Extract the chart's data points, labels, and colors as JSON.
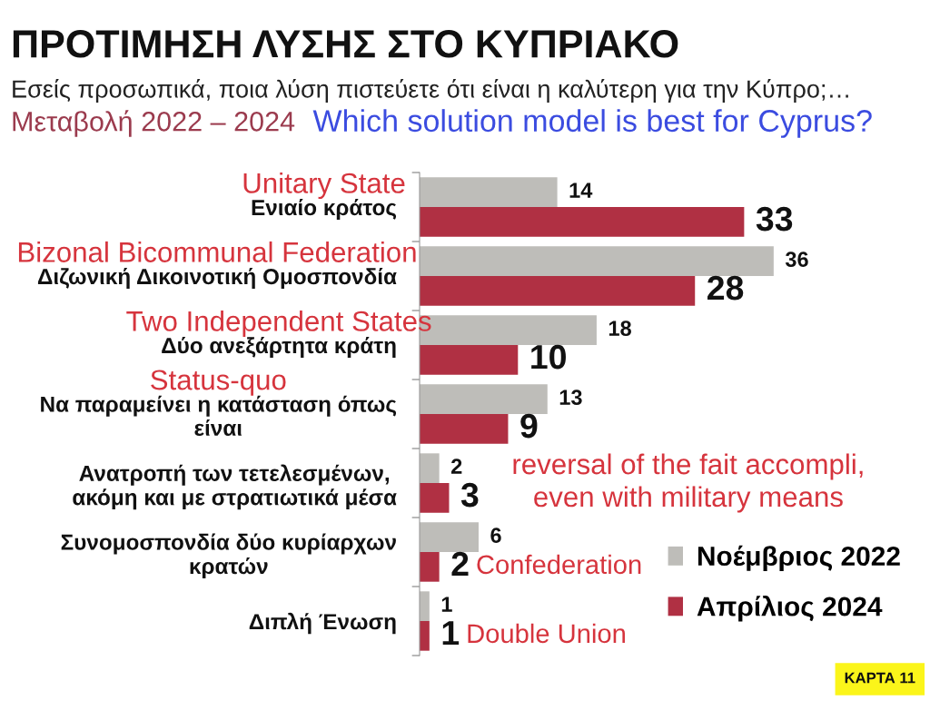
{
  "chart_data": {
    "type": "bar",
    "orientation": "horizontal",
    "title": "ΠΡΟΤΙΜΗΣΗ ΛΥΣΗΣ ΣΤΟ ΚΥΠΡΙΑΚΟ",
    "subtitle": "Εσείς προσωπικά, ποια λύση πιστεύετε ότι είναι η καλύτερη για την Κύπρο;…",
    "categories": [
      "Ενιαίο κράτος",
      "Διζωνική Δικοινοτική Ομοσπονδία",
      "Δύο ανεξάρτητα κράτη",
      "Να παραμείνει η κατάσταση όπως\nείναι",
      "Ανατροπή των τετελεσμένων,\nακόμη και με στρατιωτικά μέσα",
      "Συνομοσπονδία δύο κυρίαρχων\nκρατών",
      "Διπλή Ένωση"
    ],
    "series": [
      {
        "name": "Νοέμβριος 2022",
        "color": "#bebdb9",
        "values": [
          14,
          36,
          18,
          13,
          2,
          6,
          1
        ]
      },
      {
        "name": "Απρίλιος 2024",
        "color": "#b03043",
        "values": [
          33,
          28,
          10,
          9,
          3,
          2,
          1
        ]
      }
    ],
    "data_labels": true,
    "legend": "bottom right",
    "tick_labels": "y",
    "annotations": [
      "Μεταβολή 2022 – 2024",
      "Which solution model is best for Cyprus?",
      "Unitary State",
      "Bizonal Bicommunal Federation",
      "Two Independent States",
      "Status-quo",
      "reversal of the fait accompli,\neven with military means",
      "Confederation",
      "Double Union",
      "ΚΑΡΤΑ 11"
    ]
  }
}
